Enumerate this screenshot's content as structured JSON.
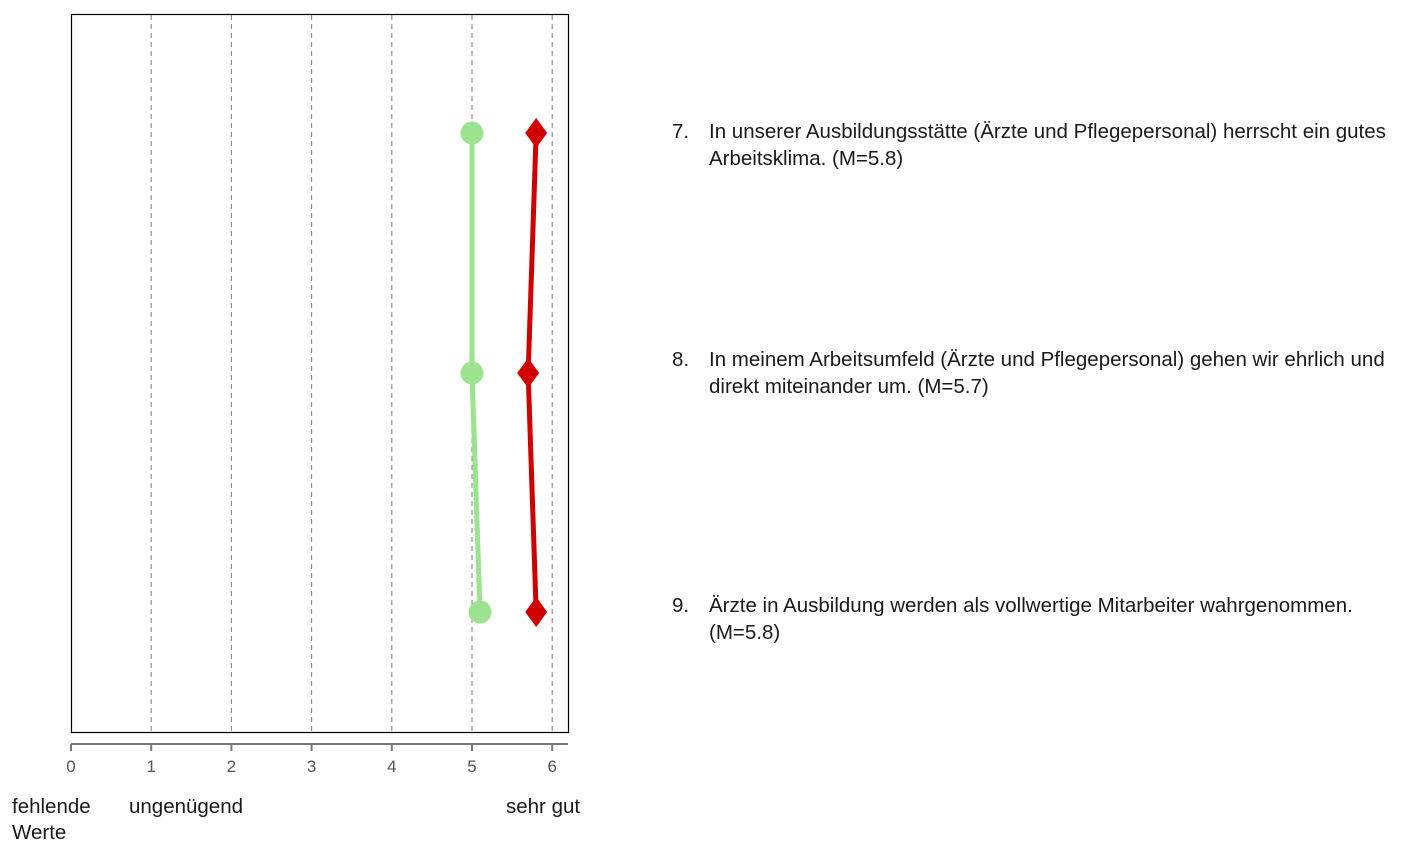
{
  "chart_data": {
    "type": "line",
    "orientation": "horizontal",
    "xlim": [
      0,
      6.2
    ],
    "ticks": [
      "0",
      "1",
      "2",
      "3",
      "4",
      "5",
      "6"
    ],
    "grid": "vertical dashed",
    "tick_captions": {
      "left": "fehlende Werte",
      "left2": "ungenügend",
      "right": "sehr gut"
    },
    "categories": [
      "7",
      "8",
      "9"
    ],
    "series": [
      {
        "values": [
          5.0,
          5.0,
          5.1
        ],
        "color": "#9be38f",
        "marker": "circle"
      },
      {
        "values": [
          5.8,
          5.7,
          5.8
        ],
        "color": "#d10000",
        "marker": "diamond"
      }
    ],
    "items": [
      {
        "num": "7.",
        "text": "In unserer Ausbildungsstätte (Ärzte und Pflegepersonal) herrscht ein gutes Arbeitsklima. (M=5.8)"
      },
      {
        "num": "8.",
        "text": "In meinem Arbeitsumfeld (Ärzte und Pflegepersonal) gehen wir ehrlich und direkt miteinander um. (M=5.7)"
      },
      {
        "num": "9.",
        "text": "Ärzte in Ausbildung werden als vollwertige Mitarbeiter wahrgenommen. (M=5.8)"
      }
    ]
  }
}
